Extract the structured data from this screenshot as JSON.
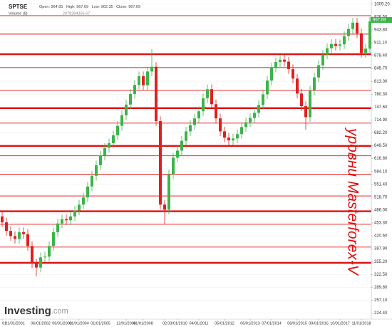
{
  "chart_data": {
    "type": "candlestick",
    "title": "SPTSE",
    "ohlc_labels": [
      "Open: 964.65",
      "High: 967.69",
      "Low: 962.35",
      "Close: 967.69"
    ],
    "volume_label": "Volume (8)",
    "volume_value": "2078284356.67",
    "last_price": "967.69",
    "annotation": "уровни Masterforex-V",
    "watermark": "Investing",
    "watermark_suffix": ".com",
    "up_color": "#3cb44a",
    "down_color": "#e02020",
    "level_color": "#e01010",
    "grid": true,
    "ylim": [
      209,
      1016
    ],
    "yticks": [
      {
        "value": 1009.2,
        "label": "1009.20"
      },
      {
        "value": 976.5,
        "label": "976.50"
      },
      {
        "value": 943.8,
        "label": "943.80"
      },
      {
        "value": 911.1,
        "label": "911.10"
      },
      {
        "value": 878.4,
        "label": "878.40"
      },
      {
        "value": 845.7,
        "label": "845.70"
      },
      {
        "value": 813,
        "label": "813.00"
      },
      {
        "value": 780.3,
        "label": "780.30"
      },
      {
        "value": 747.6,
        "label": "747.60"
      },
      {
        "value": 714.9,
        "label": "714.90"
      },
      {
        "value": 682.2,
        "label": "682.20"
      },
      {
        "value": 649.5,
        "label": "649.50"
      },
      {
        "value": 616.8,
        "label": "616.80"
      },
      {
        "value": 584.1,
        "label": "584.10"
      },
      {
        "value": 551.4,
        "label": "551.40"
      },
      {
        "value": 518.7,
        "label": "518.70"
      },
      {
        "value": 486,
        "label": "486.00"
      },
      {
        "value": 453.3,
        "label": "453.30"
      },
      {
        "value": 420.6,
        "label": "420.60"
      },
      {
        "value": 387.9,
        "label": "387.90"
      },
      {
        "value": 355.2,
        "label": "355.20"
      },
      {
        "value": 322.5,
        "label": "322.50"
      },
      {
        "value": 289.8,
        "label": "289.80"
      },
      {
        "value": 257.1,
        "label": "257.10"
      },
      {
        "value": 224.4,
        "label": "224.40"
      }
    ],
    "levels": [
      {
        "value": 980,
        "bold": false
      },
      {
        "value": 933,
        "bold": false
      },
      {
        "value": 882,
        "bold": true
      },
      {
        "value": 848,
        "bold": false
      },
      {
        "value": 790,
        "bold": false
      },
      {
        "value": 745,
        "bold": true
      },
      {
        "value": 707,
        "bold": false
      },
      {
        "value": 649,
        "bold": true
      },
      {
        "value": 624,
        "bold": false
      },
      {
        "value": 577,
        "bold": false
      },
      {
        "value": 522,
        "bold": false
      },
      {
        "value": 483,
        "bold": true
      },
      {
        "value": 450,
        "bold": false
      },
      {
        "value": 392,
        "bold": false
      },
      {
        "value": 352,
        "bold": true
      }
    ],
    "categories": [
      "01",
      null,
      null,
      "01/01/2001",
      null,
      null,
      null,
      null,
      null,
      "06/01/2002",
      null,
      null,
      null,
      null,
      "09/01/2003",
      null,
      null,
      null,
      "01/01/2004",
      null,
      null,
      null,
      null,
      "01/01/2005",
      null,
      null,
      null,
      null,
      null,
      "12/01/2006",
      null,
      null,
      null,
      "01/01/2008",
      null,
      null,
      null,
      null,
      "02",
      null,
      null,
      "03/01/2010",
      null,
      null,
      null,
      null,
      "04/01/2011",
      null,
      null,
      null,
      null,
      null,
      "05/01/2012",
      null,
      null,
      null,
      null,
      null,
      "06/01/2013",
      null,
      null,
      null,
      null,
      "07/01/2014",
      null,
      null,
      null,
      null,
      null,
      "08/01/2015",
      null,
      null,
      null,
      null,
      "09/01/2016",
      null,
      null,
      null,
      null,
      "10/01/2017",
      null,
      null,
      null,
      null,
      "11/01/2018",
      null,
      null
    ],
    "open": [
      470,
      455,
      433,
      420,
      413,
      430,
      425,
      395,
      350,
      340,
      366,
      368,
      395,
      430,
      452,
      463,
      460,
      470,
      485,
      500,
      518,
      546,
      573,
      600,
      624,
      644,
      656,
      676,
      700,
      727,
      754,
      781,
      804,
      826,
      803,
      838,
      850,
      712,
      500,
      487,
      577,
      619,
      637,
      662,
      686,
      702,
      719,
      737,
      770,
      793,
      755,
      719,
      686,
      670,
      663,
      668,
      679,
      697,
      709,
      720,
      733,
      753,
      780,
      815,
      848,
      862,
      868,
      863,
      844,
      820,
      782,
      750,
      722,
      790,
      823,
      854,
      881,
      897,
      908,
      903,
      907,
      928,
      946,
      962,
      935,
      885,
      896
    ],
    "high": [
      482,
      467,
      445,
      432,
      442,
      442,
      437,
      407,
      362,
      378,
      380,
      407,
      442,
      464,
      475,
      475,
      482,
      497,
      512,
      530,
      558,
      585,
      612,
      636,
      656,
      668,
      688,
      712,
      739,
      766,
      793,
      816,
      838,
      838,
      850,
      895,
      862,
      724,
      512,
      589,
      631,
      649,
      674,
      698,
      714,
      731,
      749,
      782,
      805,
      805,
      767,
      731,
      698,
      682,
      680,
      691,
      709,
      721,
      732,
      745,
      765,
      792,
      827,
      860,
      874,
      880,
      880,
      875,
      856,
      832,
      794,
      762,
      802,
      835,
      866,
      893,
      909,
      920,
      920,
      919,
      940,
      958,
      974,
      974,
      947,
      908,
      977
    ],
    "low": [
      443,
      421,
      408,
      401,
      401,
      413,
      383,
      338,
      318,
      328,
      354,
      356,
      383,
      418,
      440,
      448,
      448,
      458,
      473,
      488,
      506,
      534,
      561,
      588,
      612,
      632,
      644,
      664,
      688,
      715,
      742,
      769,
      792,
      791,
      791,
      826,
      700,
      488,
      450,
      475,
      565,
      607,
      625,
      650,
      674,
      690,
      707,
      725,
      758,
      743,
      707,
      674,
      658,
      651,
      651,
      656,
      667,
      685,
      697,
      708,
      721,
      741,
      768,
      803,
      836,
      850,
      851,
      832,
      808,
      770,
      738,
      690,
      710,
      778,
      811,
      842,
      869,
      885,
      891,
      891,
      895,
      916,
      934,
      923,
      873,
      873,
      884
    ],
    "close": [
      455,
      433,
      420,
      413,
      430,
      425,
      395,
      350,
      340,
      366,
      368,
      395,
      430,
      452,
      463,
      460,
      470,
      485,
      500,
      518,
      546,
      573,
      600,
      624,
      644,
      656,
      676,
      700,
      727,
      754,
      781,
      804,
      826,
      803,
      838,
      850,
      712,
      500,
      487,
      577,
      619,
      637,
      662,
      686,
      702,
      719,
      737,
      770,
      793,
      755,
      719,
      686,
      670,
      663,
      668,
      679,
      697,
      709,
      720,
      733,
      753,
      780,
      815,
      848,
      862,
      868,
      863,
      844,
      820,
      782,
      750,
      722,
      790,
      823,
      854,
      881,
      897,
      908,
      903,
      907,
      928,
      946,
      962,
      935,
      885,
      896,
      965
    ]
  }
}
